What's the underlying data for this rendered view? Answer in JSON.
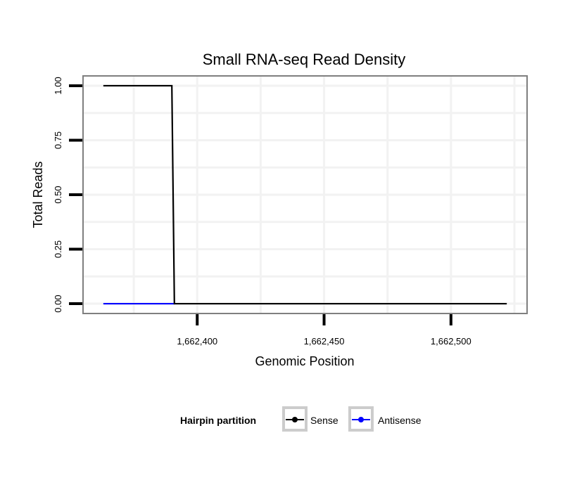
{
  "chart_data": {
    "type": "line",
    "title": "Small RNA-seq Read Density",
    "xlabel": "Genomic Position",
    "ylabel": "Total Reads",
    "xlim": [
      1662355,
      1662530
    ],
    "ylim": [
      -0.045,
      1.045
    ],
    "x_ticks": [
      1662400,
      1662450,
      1662500
    ],
    "x_tick_labels": [
      "1,662,400",
      "1,662,450",
      "1,662,500"
    ],
    "y_ticks": [
      0,
      0.25,
      0.5,
      0.75,
      1
    ],
    "y_tick_labels": [
      "0.00",
      "0.25",
      "0.50",
      "0.75",
      "1.00"
    ],
    "x_minor_gridlines": [
      1662375,
      1662425,
      1662475,
      1662525
    ],
    "y_minor_gridlines": [
      0.125,
      0.375,
      0.625,
      0.875
    ],
    "grid": true,
    "series": [
      {
        "name": "Sense",
        "color": "#000000",
        "points": [
          {
            "x": 1662363,
            "y": 1
          },
          {
            "x": 1662390,
            "y": 1
          },
          {
            "x": 1662391,
            "y": 0
          },
          {
            "x": 1662522,
            "y": 0
          }
        ]
      },
      {
        "name": "Antisense",
        "color": "#0000ff",
        "points": [
          {
            "x": 1662363,
            "y": 0
          },
          {
            "x": 1662391,
            "y": 0
          }
        ]
      }
    ],
    "legend": {
      "title": "Hairpin partition",
      "position": "bottom",
      "items": [
        "Sense",
        "Antisense"
      ]
    }
  },
  "colors": {
    "panel_border": "#7f7f7f",
    "grid": "#f2f2f2",
    "tick": "#000000",
    "legend_key_border": "#cccccc"
  }
}
